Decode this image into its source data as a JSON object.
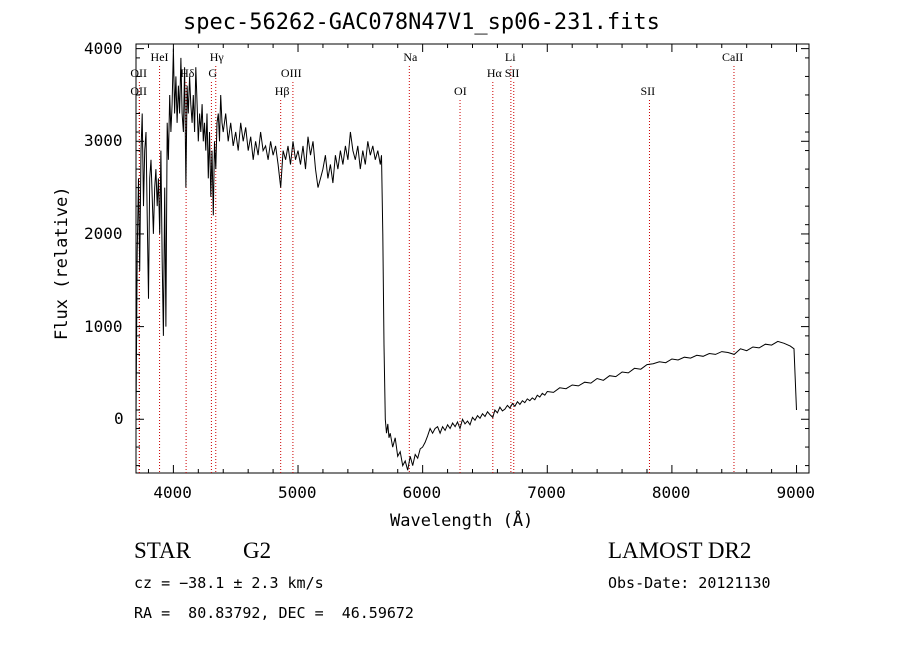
{
  "title": "spec-56262-GAC078N47V1_sp06-231.fits",
  "info": {
    "class": "STAR",
    "subclass": "G2",
    "survey": "LAMOST DR2",
    "cz": "cz = −38.1 ± 2.3 km/s",
    "obs_date": "Obs-Date: 20121130",
    "coords": "RA =  80.83792, DEC =  46.59672"
  },
  "chart_data": {
    "type": "line",
    "xlabel": "Wavelength (Å)",
    "ylabel": "Flux (relative)",
    "xlim": [
      3700,
      9100
    ],
    "ylim": [
      -580,
      4050
    ],
    "xticks": [
      4000,
      5000,
      6000,
      7000,
      8000,
      9000
    ],
    "yticks": [
      0,
      1000,
      2000,
      3000,
      4000
    ],
    "grid": false,
    "colors": {
      "spectrum": "#000000",
      "lines": "#cc0000"
    },
    "spectral_lines": [
      {
        "label": "OII",
        "wavelength": 3727,
        "row": 2
      },
      {
        "label": "OII",
        "wavelength": 3727,
        "row": 3
      },
      {
        "label": "HeI",
        "wavelength": 3889,
        "row": 1
      },
      {
        "label": "Hδ",
        "wavelength": 4102,
        "row": 2
      },
      {
        "label": "Hγ",
        "wavelength": 4340,
        "row": 1
      },
      {
        "label": "G",
        "wavelength": 4305,
        "row": 2
      },
      {
        "label": "Hβ",
        "wavelength": 4861,
        "row": 3
      },
      {
        "label": "OIII",
        "wavelength": 4959,
        "row": 2
      },
      {
        "label": "Na",
        "wavelength": 5893,
        "row": 1
      },
      {
        "label": "OI",
        "wavelength": 6300,
        "row": 3
      },
      {
        "label": "Li",
        "wavelength": 6708,
        "row": 1
      },
      {
        "label": "Hα",
        "wavelength": 6563,
        "row": 2
      },
      {
        "label": "SII",
        "wavelength": 6731,
        "row": 2
      },
      {
        "label": "SII",
        "wavelength": 7820,
        "row": 3
      },
      {
        "label": "CaII",
        "wavelength": 8498,
        "row": 1
      }
    ],
    "series": [
      {
        "points": [
          [
            3700,
            0
          ],
          [
            3710,
            1800
          ],
          [
            3720,
            2600
          ],
          [
            3730,
            1600
          ],
          [
            3740,
            2900
          ],
          [
            3750,
            3300
          ],
          [
            3760,
            2300
          ],
          [
            3770,
            2900
          ],
          [
            3780,
            3100
          ],
          [
            3790,
            2200
          ],
          [
            3800,
            1300
          ],
          [
            3810,
            2600
          ],
          [
            3820,
            2800
          ],
          [
            3830,
            2400
          ],
          [
            3840,
            2000
          ],
          [
            3850,
            2500
          ],
          [
            3860,
            2700
          ],
          [
            3870,
            2300
          ],
          [
            3880,
            2600
          ],
          [
            3890,
            2000
          ],
          [
            3900,
            2900
          ],
          [
            3910,
            1700
          ],
          [
            3920,
            900
          ],
          [
            3930,
            2500
          ],
          [
            3940,
            1000
          ],
          [
            3950,
            3200
          ],
          [
            3960,
            2800
          ],
          [
            3970,
            3500
          ],
          [
            3980,
            3100
          ],
          [
            3990,
            3400
          ],
          [
            4000,
            4000
          ],
          [
            4010,
            3300
          ],
          [
            4020,
            3700
          ],
          [
            4030,
            3200
          ],
          [
            4040,
            3600
          ],
          [
            4050,
            3300
          ],
          [
            4060,
            3900
          ],
          [
            4070,
            3300
          ],
          [
            4080,
            3100
          ],
          [
            4090,
            3800
          ],
          [
            4100,
            2500
          ],
          [
            4110,
            3600
          ],
          [
            4120,
            3300
          ],
          [
            4130,
            3700
          ],
          [
            4140,
            3400
          ],
          [
            4150,
            3200
          ],
          [
            4160,
            3500
          ],
          [
            4170,
            3100
          ],
          [
            4180,
            3800
          ],
          [
            4190,
            3400
          ],
          [
            4200,
            3000
          ],
          [
            4210,
            3300
          ],
          [
            4220,
            3100
          ],
          [
            4230,
            3400
          ],
          [
            4240,
            3000
          ],
          [
            4250,
            3200
          ],
          [
            4260,
            2900
          ],
          [
            4270,
            3300
          ],
          [
            4280,
            2600
          ],
          [
            4290,
            3100
          ],
          [
            4300,
            2400
          ],
          [
            4310,
            2900
          ],
          [
            4320,
            2200
          ],
          [
            4330,
            3000
          ],
          [
            4340,
            2700
          ],
          [
            4350,
            3200
          ],
          [
            4360,
            3300
          ],
          [
            4370,
            3000
          ],
          [
            4380,
            3500
          ],
          [
            4390,
            3200
          ],
          [
            4400,
            3100
          ],
          [
            4420,
            3300
          ],
          [
            4440,
            3000
          ],
          [
            4460,
            3200
          ],
          [
            4480,
            2950
          ],
          [
            4500,
            3100
          ],
          [
            4520,
            2900
          ],
          [
            4540,
            3200
          ],
          [
            4560,
            3000
          ],
          [
            4580,
            3150
          ],
          [
            4600,
            2900
          ],
          [
            4620,
            3050
          ],
          [
            4640,
            2800
          ],
          [
            4660,
            3000
          ],
          [
            4680,
            2850
          ],
          [
            4700,
            3100
          ],
          [
            4720,
            2900
          ],
          [
            4740,
            2950
          ],
          [
            4760,
            2800
          ],
          [
            4780,
            3000
          ],
          [
            4800,
            2850
          ],
          [
            4820,
            2950
          ],
          [
            4840,
            2750
          ],
          [
            4861,
            2500
          ],
          [
            4880,
            2900
          ],
          [
            4900,
            2800
          ],
          [
            4920,
            2950
          ],
          [
            4940,
            2750
          ],
          [
            4960,
            3000
          ],
          [
            4980,
            2800
          ],
          [
            5000,
            2900
          ],
          [
            5020,
            2750
          ],
          [
            5040,
            2950
          ],
          [
            5060,
            2700
          ],
          [
            5080,
            3050
          ],
          [
            5100,
            2850
          ],
          [
            5120,
            3000
          ],
          [
            5140,
            2700
          ],
          [
            5160,
            2500
          ],
          [
            5180,
            2600
          ],
          [
            5200,
            2700
          ],
          [
            5220,
            2850
          ],
          [
            5240,
            2600
          ],
          [
            5260,
            2750
          ],
          [
            5280,
            2550
          ],
          [
            5300,
            2850
          ],
          [
            5320,
            2700
          ],
          [
            5340,
            2900
          ],
          [
            5360,
            2750
          ],
          [
            5380,
            2950
          ],
          [
            5400,
            2800
          ],
          [
            5420,
            3100
          ],
          [
            5440,
            2900
          ],
          [
            5460,
            2800
          ],
          [
            5480,
            2950
          ],
          [
            5500,
            2700
          ],
          [
            5520,
            2900
          ],
          [
            5540,
            2750
          ],
          [
            5560,
            3000
          ],
          [
            5580,
            2850
          ],
          [
            5600,
            2950
          ],
          [
            5620,
            2800
          ],
          [
            5640,
            2900
          ],
          [
            5660,
            2750
          ],
          [
            5670,
            2850
          ],
          [
            5680,
            2000
          ],
          [
            5690,
            800
          ],
          [
            5700,
            0
          ],
          [
            5710,
            -150
          ],
          [
            5720,
            -50
          ],
          [
            5730,
            -200
          ],
          [
            5740,
            -150
          ],
          [
            5760,
            -300
          ],
          [
            5780,
            -200
          ],
          [
            5800,
            -400
          ],
          [
            5820,
            -350
          ],
          [
            5840,
            -500
          ],
          [
            5860,
            -450
          ],
          [
            5880,
            -550
          ],
          [
            5900,
            -400
          ],
          [
            5920,
            -500
          ],
          [
            5940,
            -380
          ],
          [
            5960,
            -420
          ],
          [
            5980,
            -320
          ],
          [
            6000,
            -300
          ],
          [
            6020,
            -250
          ],
          [
            6040,
            -180
          ],
          [
            6060,
            -100
          ],
          [
            6080,
            -150
          ],
          [
            6100,
            -100
          ],
          [
            6120,
            -80
          ],
          [
            6140,
            -150
          ],
          [
            6160,
            -80
          ],
          [
            6180,
            -120
          ],
          [
            6200,
            -60
          ],
          [
            6220,
            -100
          ],
          [
            6240,
            -40
          ],
          [
            6260,
            -80
          ],
          [
            6280,
            -30
          ],
          [
            6300,
            -100
          ],
          [
            6320,
            0
          ],
          [
            6340,
            -50
          ],
          [
            6360,
            -20
          ],
          [
            6380,
            -60
          ],
          [
            6400,
            20
          ],
          [
            6420,
            -10
          ],
          [
            6440,
            40
          ],
          [
            6460,
            10
          ],
          [
            6480,
            60
          ],
          [
            6500,
            30
          ],
          [
            6520,
            80
          ],
          [
            6540,
            50
          ],
          [
            6563,
            20
          ],
          [
            6580,
            100
          ],
          [
            6600,
            70
          ],
          [
            6620,
            130
          ],
          [
            6640,
            90
          ],
          [
            6660,
            110
          ],
          [
            6680,
            150
          ],
          [
            6700,
            120
          ],
          [
            6720,
            170
          ],
          [
            6740,
            140
          ],
          [
            6760,
            190
          ],
          [
            6780,
            160
          ],
          [
            6800,
            200
          ],
          [
            6820,
            180
          ],
          [
            6840,
            220
          ],
          [
            6860,
            200
          ],
          [
            6880,
            230
          ],
          [
            6900,
            210
          ],
          [
            6920,
            260
          ],
          [
            6940,
            240
          ],
          [
            6960,
            280
          ],
          [
            6980,
            260
          ],
          [
            7000,
            300
          ],
          [
            7050,
            290
          ],
          [
            7100,
            340
          ],
          [
            7150,
            330
          ],
          [
            7200,
            370
          ],
          [
            7250,
            360
          ],
          [
            7300,
            400
          ],
          [
            7350,
            390
          ],
          [
            7400,
            440
          ],
          [
            7450,
            420
          ],
          [
            7500,
            470
          ],
          [
            7550,
            460
          ],
          [
            7600,
            510
          ],
          [
            7650,
            500
          ],
          [
            7700,
            550
          ],
          [
            7750,
            540
          ],
          [
            7800,
            590
          ],
          [
            7850,
            600
          ],
          [
            7900,
            620
          ],
          [
            7950,
            610
          ],
          [
            8000,
            650
          ],
          [
            8050,
            640
          ],
          [
            8100,
            670
          ],
          [
            8150,
            660
          ],
          [
            8200,
            690
          ],
          [
            8250,
            680
          ],
          [
            8300,
            710
          ],
          [
            8350,
            700
          ],
          [
            8400,
            730
          ],
          [
            8450,
            720
          ],
          [
            8500,
            700
          ],
          [
            8550,
            760
          ],
          [
            8600,
            740
          ],
          [
            8650,
            780
          ],
          [
            8700,
            770
          ],
          [
            8750,
            810
          ],
          [
            8800,
            800
          ],
          [
            8850,
            840
          ],
          [
            8900,
            820
          ],
          [
            8950,
            790
          ],
          [
            8980,
            760
          ],
          [
            9000,
            100
          ]
        ]
      }
    ]
  }
}
